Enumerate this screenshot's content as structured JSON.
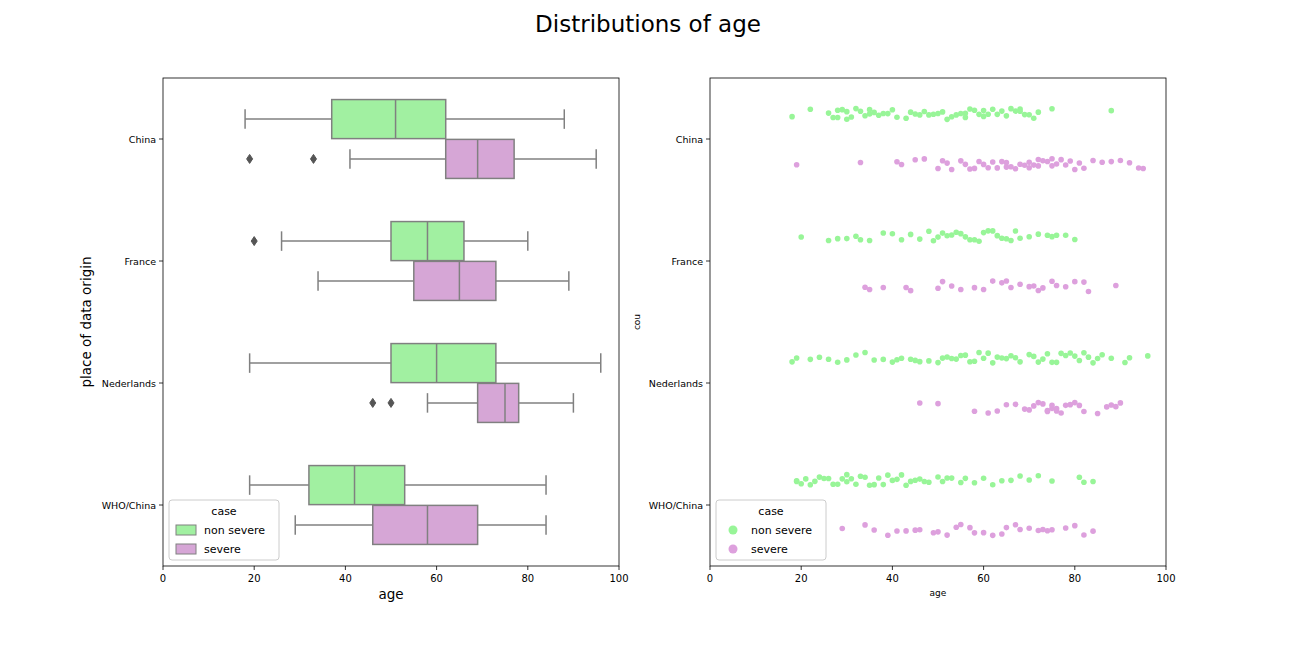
{
  "chart_data": [
    {
      "type": "box",
      "title": "Distributions of age",
      "orientation": "horizontal",
      "x_label": "age",
      "y_label": "place of data origin",
      "categories": [
        "China",
        "France",
        "Nederlands",
        "WHO/China"
      ],
      "xlim": [
        0,
        100
      ],
      "xticks": [
        0,
        20,
        40,
        60,
        80,
        100
      ],
      "legend": "lower left",
      "legend_title": "case",
      "series": [
        {
          "name": "non severe",
          "color": "#a1f0a1",
          "values": [
            [
              18,
              37,
              51,
              62,
              88
            ],
            [
              26,
              50,
              58,
              66,
              80
            ],
            [
              19,
              50,
              60,
              73,
              96
            ],
            [
              19,
              32,
              42,
              53,
              84
            ]
          ],
          "outliers": [
            [],
            [
              20
            ],
            [],
            []
          ]
        },
        {
          "name": "severe",
          "color": "#d6a6d6",
          "values": [
            [
              41,
              62,
              69,
              77,
              95
            ],
            [
              34,
              55,
              65,
              73,
              89
            ],
            [
              58,
              69,
              75,
              78,
              90
            ],
            [
              29,
              46,
              58,
              69,
              84
            ]
          ],
          "outliers": [
            [
              19,
              33
            ],
            [],
            [
              46,
              50
            ],
            []
          ]
        }
      ]
    },
    {
      "type": "strip",
      "orientation": "horizontal",
      "x_label": "age",
      "y_label": "cou",
      "categories": [
        "China",
        "France",
        "Nederlands",
        "WHO/China"
      ],
      "xlim": [
        0,
        100
      ],
      "xticks": [
        0,
        20,
        40,
        60,
        80,
        100
      ],
      "legend": "lower left",
      "legend_title": "case",
      "series": [
        {
          "name": "non severe",
          "color": "#98f598",
          "values": [
            [
              18,
              22,
              26,
              27,
              28,
              28,
              29,
              30,
              30,
              31,
              32,
              33,
              34,
              35,
              35,
              36,
              37,
              38,
              39,
              40,
              41,
              43,
              44,
              45,
              46,
              47,
              48,
              49,
              50,
              51,
              52,
              53,
              54,
              55,
              56,
              56,
              57,
              58,
              59,
              60,
              60,
              61,
              62,
              63,
              64,
              65,
              66,
              67,
              68,
              68,
              69,
              70,
              71,
              72,
              75,
              88
            ],
            [
              20,
              26,
              28,
              30,
              32,
              33,
              35,
              38,
              40,
              42,
              44,
              46,
              48,
              49,
              50,
              51,
              52,
              53,
              54,
              55,
              56,
              57,
              58,
              59,
              60,
              61,
              62,
              63,
              64,
              65,
              66,
              67,
              68,
              70,
              72,
              74,
              75,
              76,
              78,
              80
            ],
            [
              18,
              19,
              22,
              24,
              26,
              28,
              30,
              32,
              34,
              36,
              38,
              40,
              41,
              42,
              44,
              45,
              46,
              48,
              50,
              51,
              52,
              53,
              54,
              55,
              56,
              57,
              58,
              59,
              60,
              61,
              62,
              63,
              64,
              65,
              66,
              67,
              68,
              70,
              71,
              72,
              73,
              74,
              75,
              76,
              77,
              78,
              79,
              80,
              81,
              82,
              83,
              84,
              85,
              86,
              88,
              91,
              92,
              96
            ],
            [
              19,
              19,
              20,
              21,
              22,
              23,
              24,
              25,
              26,
              27,
              28,
              29,
              30,
              30,
              31,
              32,
              33,
              34,
              35,
              36,
              37,
              38,
              39,
              40,
              41,
              42,
              43,
              44,
              45,
              46,
              47,
              48,
              50,
              51,
              52,
              53,
              55,
              56,
              58,
              60,
              62,
              64,
              66,
              68,
              70,
              72,
              75,
              81,
              82,
              84
            ]
          ]
        },
        {
          "name": "severe",
          "color": "#dda0dd",
          "values": [
            [
              19,
              33,
              41,
              42,
              45,
              47,
              50,
              51,
              52,
              53,
              55,
              56,
              57,
              58,
              59,
              60,
              61,
              62,
              63,
              64,
              65,
              65,
              66,
              67,
              68,
              69,
              70,
              70,
              71,
              72,
              72,
              73,
              74,
              75,
              75,
              76,
              77,
              78,
              79,
              80,
              81,
              82,
              84,
              86,
              88,
              90,
              92,
              94,
              95
            ],
            [
              34,
              35,
              38,
              43,
              44,
              50,
              51,
              53,
              55,
              58,
              60,
              62,
              64,
              65,
              66,
              68,
              70,
              71,
              72,
              73,
              75,
              76,
              78,
              80,
              82,
              83,
              89
            ],
            [
              46,
              50,
              58,
              61,
              63,
              65,
              67,
              69,
              70,
              71,
              72,
              73,
              74,
              74,
              75,
              75,
              76,
              76,
              77,
              78,
              79,
              80,
              81,
              82,
              85,
              87,
              88,
              89,
              90
            ],
            [
              29,
              34,
              36,
              39,
              41,
              43,
              45,
              46,
              49,
              50,
              52,
              54,
              55,
              57,
              58,
              60,
              62,
              64,
              65,
              67,
              68,
              70,
              72,
              73,
              74,
              75,
              78,
              80,
              82,
              84
            ]
          ]
        }
      ]
    }
  ]
}
